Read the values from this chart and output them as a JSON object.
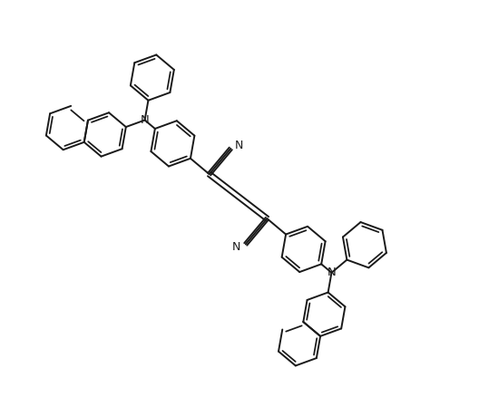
{
  "background_color": "#ffffff",
  "line_color": "#1a1a1a",
  "line_width": 1.4,
  "font_size": 8.5,
  "figsize": [
    5.28,
    4.49
  ],
  "dpi": 100,
  "xlim": [
    0,
    10.56
  ],
  "ylim": [
    0,
    8.98
  ]
}
